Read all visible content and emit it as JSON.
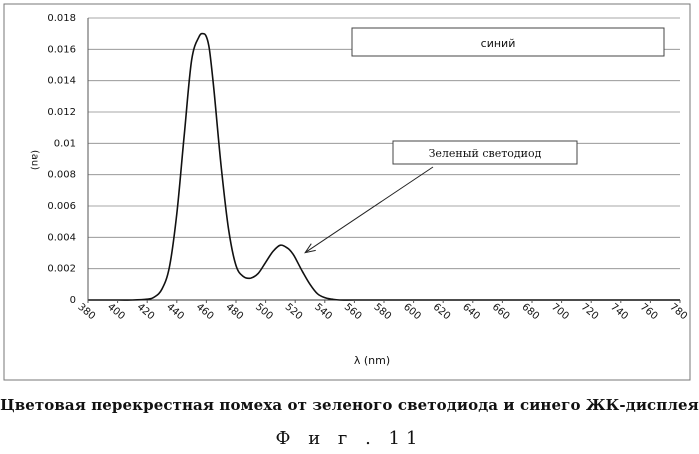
{
  "chart_data": {
    "type": "line",
    "xlabel": "λ (nm)",
    "ylabel": "(au)",
    "xlim": [
      380,
      780
    ],
    "ylim": [
      0,
      0.018
    ],
    "x_ticks": [
      380,
      400,
      420,
      440,
      460,
      480,
      500,
      520,
      540,
      560,
      580,
      600,
      620,
      640,
      660,
      680,
      700,
      720,
      740,
      760,
      780
    ],
    "y_ticks": [
      0,
      0.002,
      0.004,
      0.006,
      0.008,
      0.01,
      0.012,
      0.014,
      0.016,
      0.018
    ],
    "y_tick_labels": [
      "0",
      "0.002",
      "0.004",
      "0.006",
      "0.008",
      "0.01",
      "0.012",
      "0.014",
      "0.016",
      "0.018"
    ],
    "grid": "horizontal",
    "series": [
      {
        "x": [
          380,
          400,
          410,
          420,
          425,
          430,
          435,
          440,
          445,
          450,
          455,
          458,
          460,
          462,
          465,
          470,
          475,
          480,
          485,
          490,
          495,
          500,
          505,
          510,
          515,
          518,
          520,
          525,
          530,
          535,
          540,
          545,
          550,
          560,
          580,
          620,
          700,
          780
        ],
        "y": [
          0,
          0,
          0,
          5e-05,
          0.0002,
          0.0007,
          0.0021,
          0.0055,
          0.0105,
          0.0153,
          0.0168,
          0.017,
          0.0168,
          0.016,
          0.0135,
          0.0085,
          0.0045,
          0.0022,
          0.0015,
          0.0014,
          0.0017,
          0.0024,
          0.0031,
          0.0035,
          0.0033,
          0.003,
          0.0027,
          0.0018,
          0.001,
          0.0004,
          0.00015,
          5e-05,
          0,
          0,
          0,
          0,
          0,
          0
        ],
        "color": "#111111"
      }
    ],
    "annotations": [
      {
        "text": "синий"
      },
      {
        "text": "Зеленый светодиод",
        "points_to_x": 520,
        "points_to_y": 0.0029
      }
    ]
  },
  "caption": "Цветовая перекрестная помеха от зеленого светодиода и синего ЖК-дисплея",
  "figure_label": "Ф и г .  11"
}
